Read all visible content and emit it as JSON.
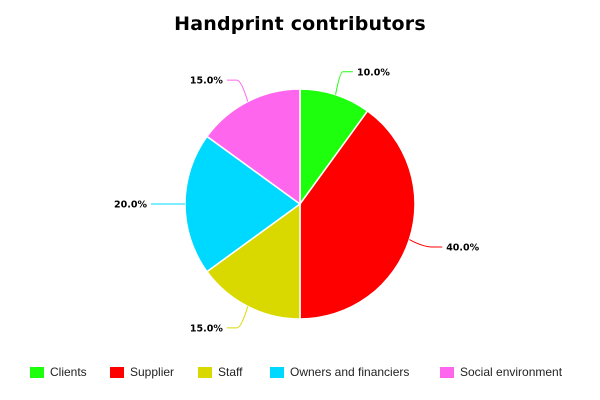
{
  "chart_data": {
    "type": "pie",
    "title": "Handprint contributors",
    "slices": [
      {
        "label": "Clients",
        "value": 10.0,
        "display": "10.0%",
        "color": "#1eff0d"
      },
      {
        "label": "Supplier",
        "value": 40.0,
        "display": "40.0%",
        "color": "#ff0000"
      },
      {
        "label": "Staff",
        "value": 15.0,
        "display": "15.0%",
        "color": "#d9d900"
      },
      {
        "label": "Owners and financiers",
        "value": 20.0,
        "display": "20.0%",
        "color": "#00d9ff"
      },
      {
        "label": "Social environment",
        "value": 15.0,
        "display": "15.0%",
        "color": "#ff66ee"
      }
    ],
    "legend_position": "bottom",
    "start_angle": "top",
    "direction": "clockwise"
  }
}
